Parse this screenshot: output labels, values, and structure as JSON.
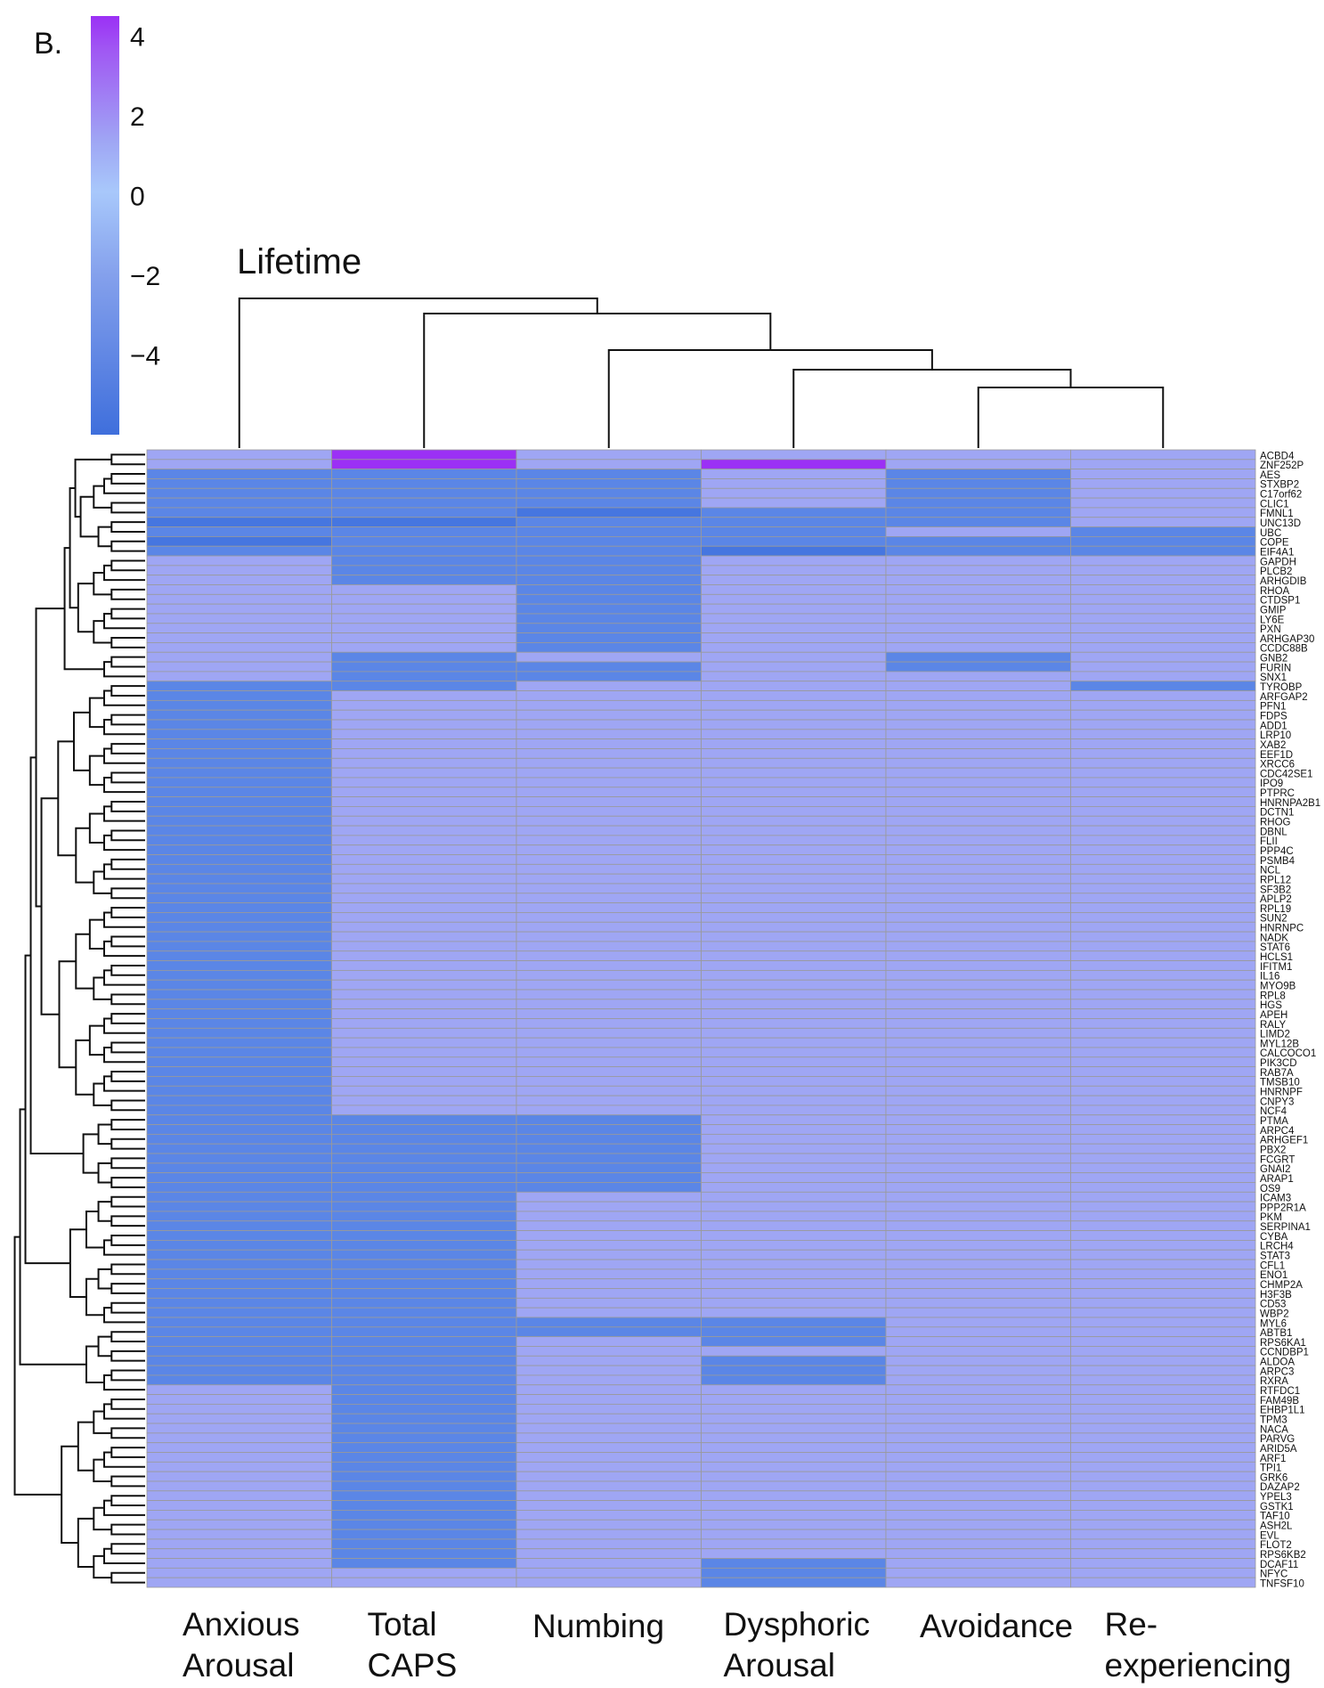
{
  "panel_label": "B.",
  "chart_data": {
    "type": "heatmap",
    "title": "Lifetime",
    "legend": {
      "type": "colorbar",
      "placement": "top-left",
      "ticks": [
        "4",
        "2",
        "0",
        "−2",
        "−4"
      ],
      "tick_values": [
        4,
        2,
        0,
        -2,
        -4
      ],
      "range": [
        -6,
        4.5
      ],
      "colors": {
        "high": "#9b30f5",
        "mid": "#9fa6f4",
        "zero": "#a8c8fb",
        "low": "#3f6fdc"
      }
    },
    "columns": [
      [
        "Anxious",
        "Arousal"
      ],
      [
        "Total",
        "CAPS"
      ],
      [
        "Numbing"
      ],
      [
        "Dysphoric",
        "Arousal"
      ],
      [
        "Avoidance"
      ],
      [
        "Re-",
        "experiencing"
      ]
    ],
    "cell_colors": {
      "0": "#9fa6f4",
      "-1": "#5b86e6",
      "-2": "#4676e0",
      "1": "#9b30f5"
    },
    "rows": [
      {
        "gene": "ACBD4",
        "values": [
          0,
          1,
          0,
          0,
          0,
          0
        ]
      },
      {
        "gene": "ZNF252P",
        "values": [
          0,
          1,
          0,
          1,
          0,
          0
        ]
      },
      {
        "gene": "AES",
        "values": [
          -1,
          -1,
          -1,
          0,
          -1,
          0
        ]
      },
      {
        "gene": "STXBP2",
        "values": [
          -1,
          -1,
          -1,
          0,
          -1,
          0
        ]
      },
      {
        "gene": "C17orf62",
        "values": [
          -1,
          -1,
          -1,
          0,
          -1,
          0
        ]
      },
      {
        "gene": "CLIC1",
        "values": [
          -1,
          -1,
          -1,
          0,
          -1,
          0
        ]
      },
      {
        "gene": "FMNL1",
        "values": [
          -1,
          -1,
          -2,
          -1,
          -1,
          0
        ]
      },
      {
        "gene": "UNC13D",
        "values": [
          -2,
          -2,
          -1,
          -1,
          -1,
          0
        ]
      },
      {
        "gene": "UBC",
        "values": [
          -1,
          -1,
          -1,
          -1,
          0,
          -1
        ]
      },
      {
        "gene": "COPE",
        "values": [
          -2,
          -1,
          -1,
          -1,
          -1,
          -1
        ]
      },
      {
        "gene": "EIF4A1",
        "values": [
          -1,
          -1,
          -1,
          -2,
          -1,
          -1
        ]
      },
      {
        "gene": "GAPDH",
        "values": [
          0,
          -1,
          -1,
          0,
          0,
          0
        ]
      },
      {
        "gene": "PLCB2",
        "values": [
          0,
          -1,
          -1,
          0,
          0,
          0
        ]
      },
      {
        "gene": "ARHGDIB",
        "values": [
          0,
          -1,
          -1,
          0,
          0,
          0
        ]
      },
      {
        "gene": "RHOA",
        "values": [
          0,
          0,
          -1,
          0,
          0,
          0
        ]
      },
      {
        "gene": "CTDSP1",
        "values": [
          0,
          0,
          -1,
          0,
          0,
          0
        ]
      },
      {
        "gene": "GMIP",
        "values": [
          0,
          0,
          -1,
          0,
          0,
          0
        ]
      },
      {
        "gene": "LY6E",
        "values": [
          0,
          0,
          -1,
          0,
          0,
          0
        ]
      },
      {
        "gene": "PXN",
        "values": [
          0,
          0,
          -1,
          0,
          0,
          0
        ]
      },
      {
        "gene": "ARHGAP30",
        "values": [
          0,
          0,
          -1,
          0,
          0,
          0
        ]
      },
      {
        "gene": "CCDC88B",
        "values": [
          0,
          0,
          -1,
          0,
          0,
          0
        ]
      },
      {
        "gene": "GNB2",
        "values": [
          0,
          -1,
          0,
          0,
          -1,
          0
        ]
      },
      {
        "gene": "FURIN",
        "values": [
          0,
          -1,
          -1,
          0,
          -1,
          0
        ]
      },
      {
        "gene": "SNX1",
        "values": [
          0,
          -1,
          -1,
          0,
          0,
          0
        ]
      },
      {
        "gene": "TYROBP",
        "values": [
          -1,
          -1,
          0,
          0,
          0,
          -1
        ]
      },
      {
        "gene": "ARFGAP2",
        "values": [
          -1,
          0,
          0,
          0,
          0,
          0
        ]
      },
      {
        "gene": "PFN1",
        "values": [
          -1,
          0,
          0,
          0,
          0,
          0
        ]
      },
      {
        "gene": "FDPS",
        "values": [
          -1,
          0,
          0,
          0,
          0,
          0
        ]
      },
      {
        "gene": "ADD1",
        "values": [
          -1,
          0,
          0,
          0,
          0,
          0
        ]
      },
      {
        "gene": "LRP10",
        "values": [
          -1,
          0,
          0,
          0,
          0,
          0
        ]
      },
      {
        "gene": "XAB2",
        "values": [
          -1,
          0,
          0,
          0,
          0,
          0
        ]
      },
      {
        "gene": "EEF1D",
        "values": [
          -1,
          0,
          0,
          0,
          0,
          0
        ]
      },
      {
        "gene": "XRCC6",
        "values": [
          -1,
          0,
          0,
          0,
          0,
          0
        ]
      },
      {
        "gene": "CDC42SE1",
        "values": [
          -1,
          0,
          0,
          0,
          0,
          0
        ]
      },
      {
        "gene": "IPO9",
        "values": [
          -1,
          0,
          0,
          0,
          0,
          0
        ]
      },
      {
        "gene": "PTPRC",
        "values": [
          -1,
          0,
          0,
          0,
          0,
          0
        ]
      },
      {
        "gene": "HNRNPA2B1",
        "values": [
          -1,
          0,
          0,
          0,
          0,
          0
        ]
      },
      {
        "gene": "DCTN1",
        "values": [
          -1,
          0,
          0,
          0,
          0,
          0
        ]
      },
      {
        "gene": "RHOG",
        "values": [
          -1,
          0,
          0,
          0,
          0,
          0
        ]
      },
      {
        "gene": "DBNL",
        "values": [
          -1,
          0,
          0,
          0,
          0,
          0
        ]
      },
      {
        "gene": "FLII",
        "values": [
          -1,
          0,
          0,
          0,
          0,
          0
        ]
      },
      {
        "gene": "PPP4C",
        "values": [
          -1,
          0,
          0,
          0,
          0,
          0
        ]
      },
      {
        "gene": "PSMB4",
        "values": [
          -1,
          0,
          0,
          0,
          0,
          0
        ]
      },
      {
        "gene": "NCL",
        "values": [
          -1,
          0,
          0,
          0,
          0,
          0
        ]
      },
      {
        "gene": "RPL12",
        "values": [
          -1,
          0,
          0,
          0,
          0,
          0
        ]
      },
      {
        "gene": "SF3B2",
        "values": [
          -1,
          0,
          0,
          0,
          0,
          0
        ]
      },
      {
        "gene": "APLP2",
        "values": [
          -1,
          0,
          0,
          0,
          0,
          0
        ]
      },
      {
        "gene": "RPL19",
        "values": [
          -1,
          0,
          0,
          0,
          0,
          0
        ]
      },
      {
        "gene": "SUN2",
        "values": [
          -1,
          0,
          0,
          0,
          0,
          0
        ]
      },
      {
        "gene": "HNRNPC",
        "values": [
          -1,
          0,
          0,
          0,
          0,
          0
        ]
      },
      {
        "gene": "NADK",
        "values": [
          -1,
          0,
          0,
          0,
          0,
          0
        ]
      },
      {
        "gene": "STAT6",
        "values": [
          -1,
          0,
          0,
          0,
          0,
          0
        ]
      },
      {
        "gene": "HCLS1",
        "values": [
          -1,
          0,
          0,
          0,
          0,
          0
        ]
      },
      {
        "gene": "IFITM1",
        "values": [
          -1,
          0,
          0,
          0,
          0,
          0
        ]
      },
      {
        "gene": "IL16",
        "values": [
          -1,
          0,
          0,
          0,
          0,
          0
        ]
      },
      {
        "gene": "MYO9B",
        "values": [
          -1,
          0,
          0,
          0,
          0,
          0
        ]
      },
      {
        "gene": "RPL8",
        "values": [
          -1,
          0,
          0,
          0,
          0,
          0
        ]
      },
      {
        "gene": "HGS",
        "values": [
          -1,
          0,
          0,
          0,
          0,
          0
        ]
      },
      {
        "gene": "APEH",
        "values": [
          -1,
          0,
          0,
          0,
          0,
          0
        ]
      },
      {
        "gene": "RALY",
        "values": [
          -1,
          0,
          0,
          0,
          0,
          0
        ]
      },
      {
        "gene": "LIMD2",
        "values": [
          -1,
          0,
          0,
          0,
          0,
          0
        ]
      },
      {
        "gene": "MYL12B",
        "values": [
          -1,
          0,
          0,
          0,
          0,
          0
        ]
      },
      {
        "gene": "CALCOCO1",
        "values": [
          -1,
          0,
          0,
          0,
          0,
          0
        ]
      },
      {
        "gene": "PIK3CD",
        "values": [
          -1,
          0,
          0,
          0,
          0,
          0
        ]
      },
      {
        "gene": "RAB7A",
        "values": [
          -1,
          0,
          0,
          0,
          0,
          0
        ]
      },
      {
        "gene": "TMSB10",
        "values": [
          -1,
          0,
          0,
          0,
          0,
          0
        ]
      },
      {
        "gene": "HNRNPF",
        "values": [
          -1,
          0,
          0,
          0,
          0,
          0
        ]
      },
      {
        "gene": "CNPY3",
        "values": [
          -1,
          0,
          0,
          0,
          0,
          0
        ]
      },
      {
        "gene": "NCF4",
        "values": [
          -1,
          0,
          0,
          0,
          0,
          0
        ]
      },
      {
        "gene": "PTMA",
        "values": [
          -1,
          -1,
          -1,
          0,
          0,
          0
        ]
      },
      {
        "gene": "ARPC4",
        "values": [
          -1,
          -1,
          -1,
          0,
          0,
          0
        ]
      },
      {
        "gene": "ARHGEF1",
        "values": [
          -1,
          -1,
          -1,
          0,
          0,
          0
        ]
      },
      {
        "gene": "PBX2",
        "values": [
          -1,
          -1,
          -1,
          0,
          0,
          0
        ]
      },
      {
        "gene": "FCGRT",
        "values": [
          -1,
          -1,
          -1,
          0,
          0,
          0
        ]
      },
      {
        "gene": "GNAI2",
        "values": [
          -1,
          -1,
          -1,
          0,
          0,
          0
        ]
      },
      {
        "gene": "ARAP1",
        "values": [
          -1,
          -1,
          -1,
          0,
          0,
          0
        ]
      },
      {
        "gene": "OS9",
        "values": [
          -1,
          -1,
          -1,
          0,
          0,
          0
        ]
      },
      {
        "gene": "ICAM3",
        "values": [
          -1,
          -1,
          0,
          0,
          0,
          0
        ]
      },
      {
        "gene": "PPP2R1A",
        "values": [
          -1,
          -1,
          0,
          0,
          0,
          0
        ]
      },
      {
        "gene": "PKM",
        "values": [
          -1,
          -1,
          0,
          0,
          0,
          0
        ]
      },
      {
        "gene": "SERPINA1",
        "values": [
          -1,
          -1,
          0,
          0,
          0,
          0
        ]
      },
      {
        "gene": "CYBA",
        "values": [
          -1,
          -1,
          0,
          0,
          0,
          0
        ]
      },
      {
        "gene": "LRCH4",
        "values": [
          -1,
          -1,
          0,
          0,
          0,
          0
        ]
      },
      {
        "gene": "STAT3",
        "values": [
          -1,
          -1,
          0,
          0,
          0,
          0
        ]
      },
      {
        "gene": "CFL1",
        "values": [
          -1,
          -1,
          0,
          0,
          0,
          0
        ]
      },
      {
        "gene": "ENO1",
        "values": [
          -1,
          -1,
          0,
          0,
          0,
          0
        ]
      },
      {
        "gene": "CHMP2A",
        "values": [
          -1,
          -1,
          0,
          0,
          0,
          0
        ]
      },
      {
        "gene": "H3F3B",
        "values": [
          -1,
          -1,
          0,
          0,
          0,
          0
        ]
      },
      {
        "gene": "CD53",
        "values": [
          -1,
          -1,
          0,
          0,
          0,
          0
        ]
      },
      {
        "gene": "WBP2",
        "values": [
          -1,
          -1,
          0,
          0,
          0,
          0
        ]
      },
      {
        "gene": "MYL6",
        "values": [
          -1,
          -1,
          -1,
          -1,
          0,
          0
        ]
      },
      {
        "gene": "ABTB1",
        "values": [
          -1,
          -1,
          -1,
          -1,
          0,
          0
        ]
      },
      {
        "gene": "RPS6KA1",
        "values": [
          -1,
          -1,
          0,
          -1,
          0,
          0
        ]
      },
      {
        "gene": "CCNDBP1",
        "values": [
          -1,
          -1,
          0,
          0,
          0,
          0
        ]
      },
      {
        "gene": "ALDOA",
        "values": [
          -1,
          -1,
          0,
          -1,
          0,
          0
        ]
      },
      {
        "gene": "ARPC3",
        "values": [
          -1,
          -1,
          0,
          -1,
          0,
          0
        ]
      },
      {
        "gene": "RXRA",
        "values": [
          -1,
          -1,
          0,
          -1,
          0,
          0
        ]
      },
      {
        "gene": "RTFDC1",
        "values": [
          0,
          -1,
          0,
          0,
          0,
          0
        ]
      },
      {
        "gene": "FAM49B",
        "values": [
          0,
          -1,
          0,
          0,
          0,
          0
        ]
      },
      {
        "gene": "EHBP1L1",
        "values": [
          0,
          -1,
          0,
          0,
          0,
          0
        ]
      },
      {
        "gene": "TPM3",
        "values": [
          0,
          -1,
          0,
          0,
          0,
          0
        ]
      },
      {
        "gene": "NACA",
        "values": [
          0,
          -1,
          0,
          0,
          0,
          0
        ]
      },
      {
        "gene": "PARVG",
        "values": [
          0,
          -1,
          0,
          0,
          0,
          0
        ]
      },
      {
        "gene": "ARID5A",
        "values": [
          0,
          -1,
          0,
          0,
          0,
          0
        ]
      },
      {
        "gene": "ARF1",
        "values": [
          0,
          -1,
          0,
          0,
          0,
          0
        ]
      },
      {
        "gene": "TPI1",
        "values": [
          0,
          -1,
          0,
          0,
          0,
          0
        ]
      },
      {
        "gene": "GRK6",
        "values": [
          0,
          -1,
          0,
          0,
          0,
          0
        ]
      },
      {
        "gene": "DAZAP2",
        "values": [
          0,
          -1,
          0,
          0,
          0,
          0
        ]
      },
      {
        "gene": "YPEL3",
        "values": [
          0,
          -1,
          0,
          0,
          0,
          0
        ]
      },
      {
        "gene": "GSTK1",
        "values": [
          0,
          -1,
          0,
          0,
          0,
          0
        ]
      },
      {
        "gene": "TAF10",
        "values": [
          0,
          -1,
          0,
          0,
          0,
          0
        ]
      },
      {
        "gene": "ASH2L",
        "values": [
          0,
          -1,
          0,
          0,
          0,
          0
        ]
      },
      {
        "gene": "EVL",
        "values": [
          0,
          -1,
          0,
          0,
          0,
          0
        ]
      },
      {
        "gene": "FLOT2",
        "values": [
          0,
          -1,
          0,
          0,
          0,
          0
        ]
      },
      {
        "gene": "RPS6KB2",
        "values": [
          0,
          -1,
          0,
          0,
          0,
          0
        ]
      },
      {
        "gene": "DCAF11",
        "values": [
          0,
          -1,
          0,
          -1,
          0,
          0
        ]
      },
      {
        "gene": "NFYC",
        "values": [
          0,
          0,
          0,
          -1,
          0,
          0
        ]
      },
      {
        "gene": "TNFSF10",
        "values": [
          0,
          0,
          0,
          -1,
          0,
          0
        ]
      }
    ]
  }
}
